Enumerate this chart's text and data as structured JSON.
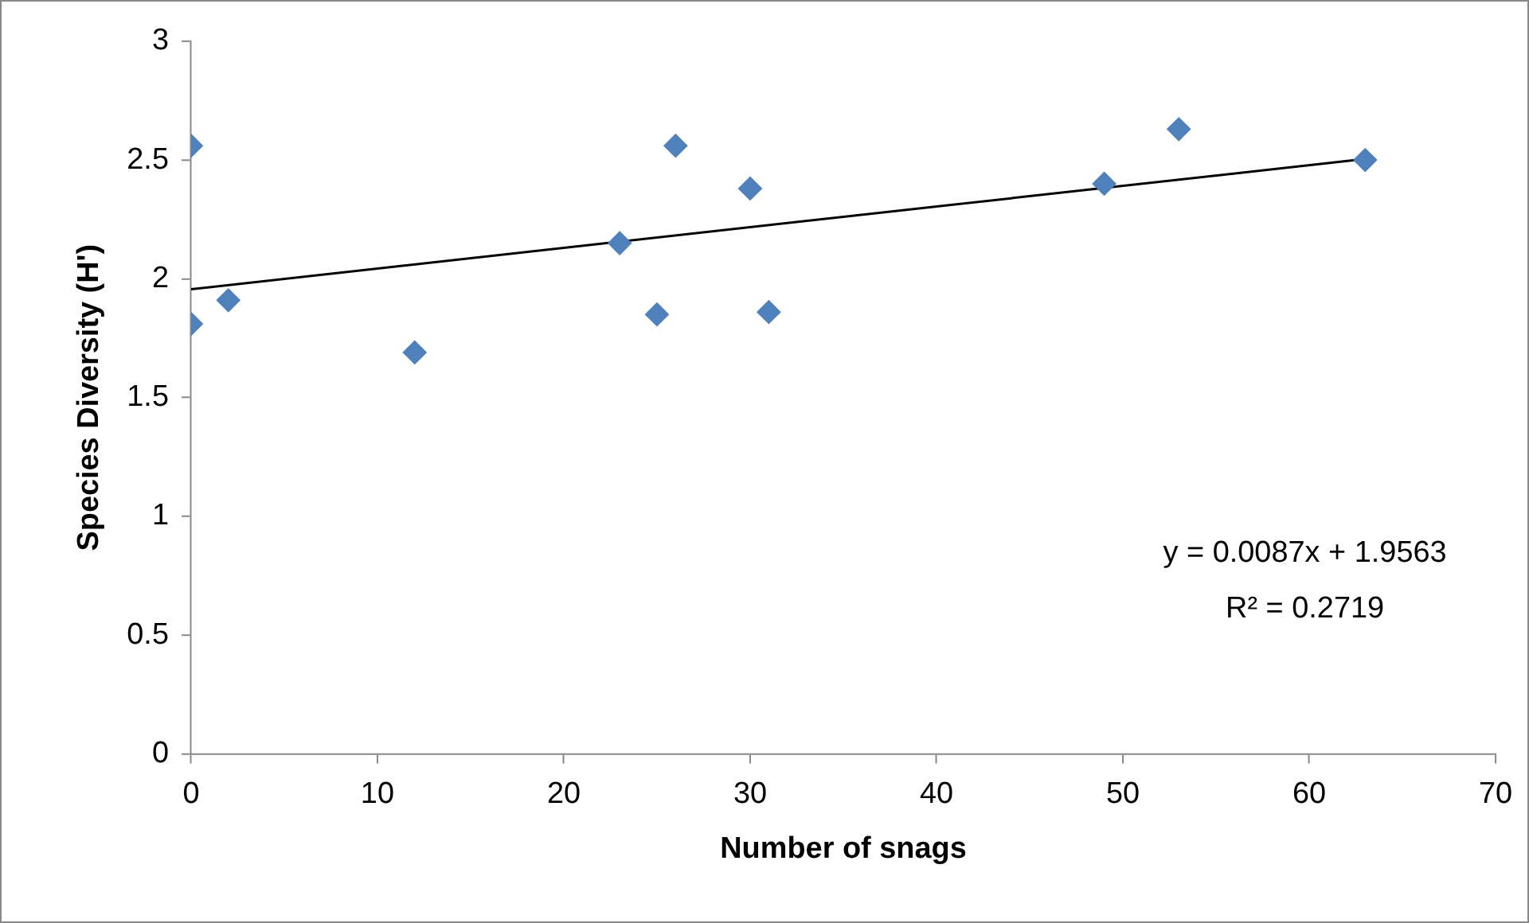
{
  "chart_data": {
    "type": "scatter",
    "xlabel": "Number of snags",
    "ylabel": "Species Diversity (H')",
    "x": [
      0,
      0,
      2,
      12,
      23,
      25,
      26,
      30,
      31,
      49,
      53,
      63
    ],
    "series": [
      {
        "color": "#4f81bd",
        "values": [
          2.56,
          1.81,
          1.91,
          1.69,
          2.15,
          1.85,
          2.56,
          2.38,
          1.86,
          2.4,
          2.63,
          2.5
        ]
      },
      {
        "type": "line",
        "color": "#000000",
        "marker": "none",
        "x": [
          0,
          63
        ],
        "values": [
          1.9563,
          2.5044
        ]
      }
    ],
    "xlim": [
      0,
      70
    ],
    "xticks": [
      0,
      10,
      20,
      30,
      40,
      50,
      60,
      70
    ],
    "ylim": [
      0,
      3
    ],
    "yticks": [
      0,
      0.5,
      1,
      1.5,
      2,
      2.5,
      3
    ],
    "grid": false,
    "legend": false,
    "marker": "diamond",
    "annotations": [
      "y = 0.0087x + 1.9563",
      "R² = 0.2719"
    ]
  }
}
